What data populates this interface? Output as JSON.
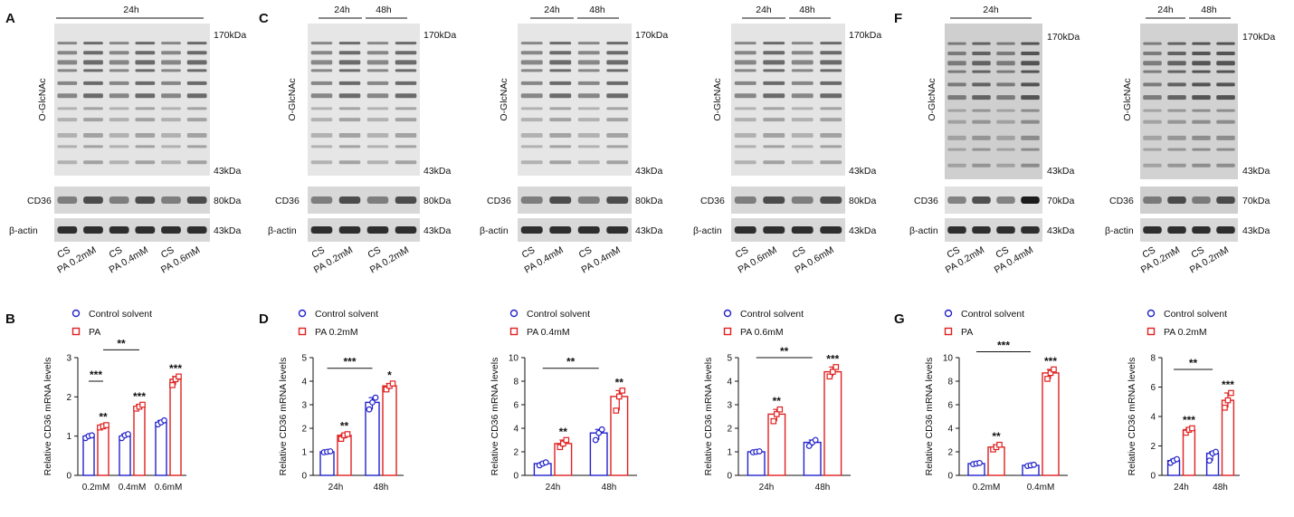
{
  "panel_labels": {
    "A": "A",
    "B": "B",
    "C": "C",
    "D": "D",
    "F": "F",
    "G": "G"
  },
  "colors": {
    "control": "#2222cc",
    "pa": "#e02020"
  },
  "blots": [
    {
      "id": "a",
      "time_labels": [
        "24h"
      ],
      "lane_labels": [
        "CS",
        "PA 0.2mM",
        "CS",
        "PA 0.4mM",
        "CS",
        "PA 0.6mM"
      ],
      "target_label": "O-GlcNAc",
      "mw_top": "170kDa",
      "mw_bottom": "43kDa",
      "cd36_label": "CD36",
      "cd36_mw": "80kDa",
      "actin_label": "β-actin",
      "actin_mw": "43kDa"
    },
    {
      "id": "c1",
      "time_labels": [
        "24h",
        "48h"
      ],
      "lane_labels": [
        "CS",
        "PA 0.2mM",
        "CS",
        "PA 0.2mM"
      ],
      "target_label": "O-GlcNAc",
      "mw_top": "170kDa",
      "mw_bottom": "43kDa",
      "cd36_label": "CD36",
      "cd36_mw": "80kDa",
      "actin_label": "β-actin",
      "actin_mw": "43kDa"
    },
    {
      "id": "c2",
      "time_labels": [
        "24h",
        "48h"
      ],
      "lane_labels": [
        "CS",
        "PA 0.4mM",
        "CS",
        "PA 0.4mM"
      ],
      "target_label": "O-GlcNAc",
      "mw_top": "170kDa",
      "mw_bottom": "43kDa",
      "cd36_label": "CD36",
      "cd36_mw": "80kDa",
      "actin_label": "β-actin",
      "actin_mw": "43kDa"
    },
    {
      "id": "c3",
      "time_labels": [
        "24h",
        "48h"
      ],
      "lane_labels": [
        "CS",
        "PA 0.6mM",
        "CS",
        "PA 0.6mM"
      ],
      "target_label": "O-GlcNAc",
      "mw_top": "170kDa",
      "mw_bottom": "43kDa",
      "cd36_label": "CD36",
      "cd36_mw": "80kDa",
      "actin_label": "β-actin",
      "actin_mw": "43kDa"
    },
    {
      "id": "f1",
      "time_labels": [
        "24h"
      ],
      "lane_labels": [
        "CS",
        "PA 0.2mM",
        "CS",
        "PA 0.4mM"
      ],
      "target_label": "O-GlcNAc",
      "mw_top": "170kDa",
      "mw_bottom": "43kDa",
      "cd36_label": "CD36",
      "cd36_mw": "70kDa",
      "actin_label": "β-actin",
      "actin_mw": "43kDa"
    },
    {
      "id": "f2",
      "time_labels": [
        "24h",
        "48h"
      ],
      "lane_labels": [
        "CS",
        "PA 0.2mM",
        "CS",
        "PA 0.2mM"
      ],
      "target_label": "O-GlcNAc",
      "mw_top": "170kDa",
      "mw_bottom": "43kDa",
      "cd36_label": "CD36",
      "cd36_mw": "70kDa",
      "actin_label": "β-actin",
      "actin_mw": "43kDa"
    }
  ],
  "chart_data": [
    {
      "id": "b",
      "type": "bar",
      "categories": [
        "0.2mM",
        "0.4mM",
        "0.6mM"
      ],
      "series": [
        {
          "name": "Control solvent",
          "values": [
            1.0,
            1.0,
            1.35
          ],
          "points": [
            [
              0.95,
              1.0,
              1.02
            ],
            [
              0.95,
              1.02,
              1.05
            ],
            [
              1.3,
              1.35,
              1.4
            ]
          ]
        },
        {
          "name": "PA",
          "values": [
            1.25,
            1.75,
            2.45
          ],
          "points": [
            [
              1.22,
              1.25,
              1.28
            ],
            [
              1.7,
              1.75,
              1.8
            ],
            [
              2.3,
              2.45,
              2.52
            ]
          ]
        }
      ],
      "ylabel": "Relative CD36 mRNA levels",
      "ylim": [
        0,
        3
      ],
      "yticks": [
        "0",
        "1",
        "2",
        "3"
      ],
      "sig_over_bars": [
        "**",
        "***",
        "***"
      ],
      "brackets": [
        {
          "from": 1,
          "to": 2,
          "y": 2.4,
          "label": "***"
        },
        {
          "from": 2,
          "to": 4,
          "y": 3.2,
          "label": "**"
        }
      ]
    },
    {
      "id": "d1",
      "type": "bar",
      "categories": [
        "24h",
        "48h"
      ],
      "series": [
        {
          "name": "Control solvent",
          "values": [
            1.0,
            3.1
          ],
          "points": [
            [
              0.98,
              1.0,
              1.02
            ],
            [
              2.8,
              3.1,
              3.3
            ]
          ]
        },
        {
          "name": "PA 0.2mM",
          "values": [
            1.7,
            3.8
          ],
          "points": [
            [
              1.55,
              1.7,
              1.75
            ],
            [
              3.65,
              3.8,
              3.9
            ]
          ]
        }
      ],
      "ylabel": "Relative CD36 mRNA levels",
      "ylim": [
        0,
        5
      ],
      "yticks": [
        "0",
        "1",
        "2",
        "3",
        "4",
        "5"
      ],
      "sig_over_bars": [
        "**",
        "*"
      ],
      "brackets": [
        {
          "from": 1,
          "to": 3,
          "y": 4.55,
          "label": "***"
        }
      ]
    },
    {
      "id": "d2",
      "type": "bar",
      "categories": [
        "24h",
        "48h"
      ],
      "series": [
        {
          "name": "Control solvent",
          "values": [
            1.0,
            3.6
          ],
          "points": [
            [
              0.85,
              1.0,
              1.1
            ],
            [
              3.0,
              3.6,
              3.9
            ]
          ]
        },
        {
          "name": "PA 0.4mM",
          "values": [
            2.7,
            6.7
          ],
          "points": [
            [
              2.4,
              2.7,
              3.0
            ],
            [
              5.5,
              6.7,
              7.2
            ]
          ]
        }
      ],
      "ylabel": "Relative CD36 mRNA levels",
      "ylim": [
        0,
        10
      ],
      "yticks": [
        "0",
        "2",
        "4",
        "6",
        "8",
        "10"
      ],
      "sig_over_bars": [
        "**",
        "**"
      ],
      "brackets": [
        {
          "from": 1,
          "to": 3,
          "y": 9.1,
          "label": "**"
        }
      ]
    },
    {
      "id": "d3",
      "type": "bar",
      "categories": [
        "24h",
        "48h"
      ],
      "series": [
        {
          "name": "Control solvent",
          "values": [
            1.0,
            1.4
          ],
          "points": [
            [
              0.98,
              1.0,
              1.02
            ],
            [
              1.25,
              1.4,
              1.5
            ]
          ]
        },
        {
          "name": "PA 0.6mM",
          "values": [
            2.6,
            4.4
          ],
          "points": [
            [
              2.3,
              2.6,
              2.8
            ],
            [
              4.2,
              4.4,
              4.6
            ]
          ]
        }
      ],
      "ylabel": "Relative CD36 mRNA levels",
      "ylim": [
        0,
        5
      ],
      "yticks": [
        "0",
        "1",
        "2",
        "3",
        "4",
        "5"
      ],
      "sig_over_bars": [
        "**",
        "***"
      ],
      "brackets": [
        {
          "from": 1,
          "to": 3,
          "y": 5.0,
          "label": "**"
        }
      ]
    },
    {
      "id": "g1",
      "type": "bar",
      "categories": [
        "0.2mM",
        "0.4mM"
      ],
      "series": [
        {
          "name": "Control solvent",
          "values": [
            1.0,
            0.85
          ],
          "points": [
            [
              0.95,
              1.0,
              1.05
            ],
            [
              0.8,
              0.85,
              0.9
            ]
          ]
        },
        {
          "name": "PA",
          "values": [
            2.4,
            8.7
          ],
          "points": [
            [
              2.2,
              2.4,
              2.6
            ],
            [
              8.2,
              8.7,
              9.0
            ]
          ]
        }
      ],
      "ylabel": "Relative CD36 mRNA levels",
      "ylim": [
        0,
        10
      ],
      "yticks": [
        "0",
        "2",
        "4",
        "6",
        "8",
        "10"
      ],
      "sig_over_bars": [
        "**",
        "***"
      ],
      "brackets": [
        {
          "from": 1,
          "to": 3,
          "y": 10.5,
          "label": "***"
        }
      ]
    },
    {
      "id": "g2",
      "type": "bar",
      "categories": [
        "24h",
        "48h"
      ],
      "series": [
        {
          "name": "Control solvent",
          "values": [
            1.0,
            1.5
          ],
          "points": [
            [
              0.85,
              1.0,
              1.1
            ],
            [
              1.0,
              1.5,
              1.6
            ]
          ]
        },
        {
          "name": "PA 0.2mM",
          "values": [
            3.1,
            5.1
          ],
          "points": [
            [
              2.9,
              3.1,
              3.2
            ],
            [
              4.6,
              5.1,
              5.6
            ]
          ]
        }
      ],
      "ylabel": "Relative CD36 mRNA levels",
      "ylim": [
        0,
        8
      ],
      "yticks": [
        "0",
        "2",
        "4",
        "6",
        "8"
      ],
      "sig_over_bars": [
        "***",
        "***"
      ],
      "brackets": [
        {
          "from": 1,
          "to": 3,
          "y": 7.2,
          "label": "**"
        }
      ]
    }
  ]
}
